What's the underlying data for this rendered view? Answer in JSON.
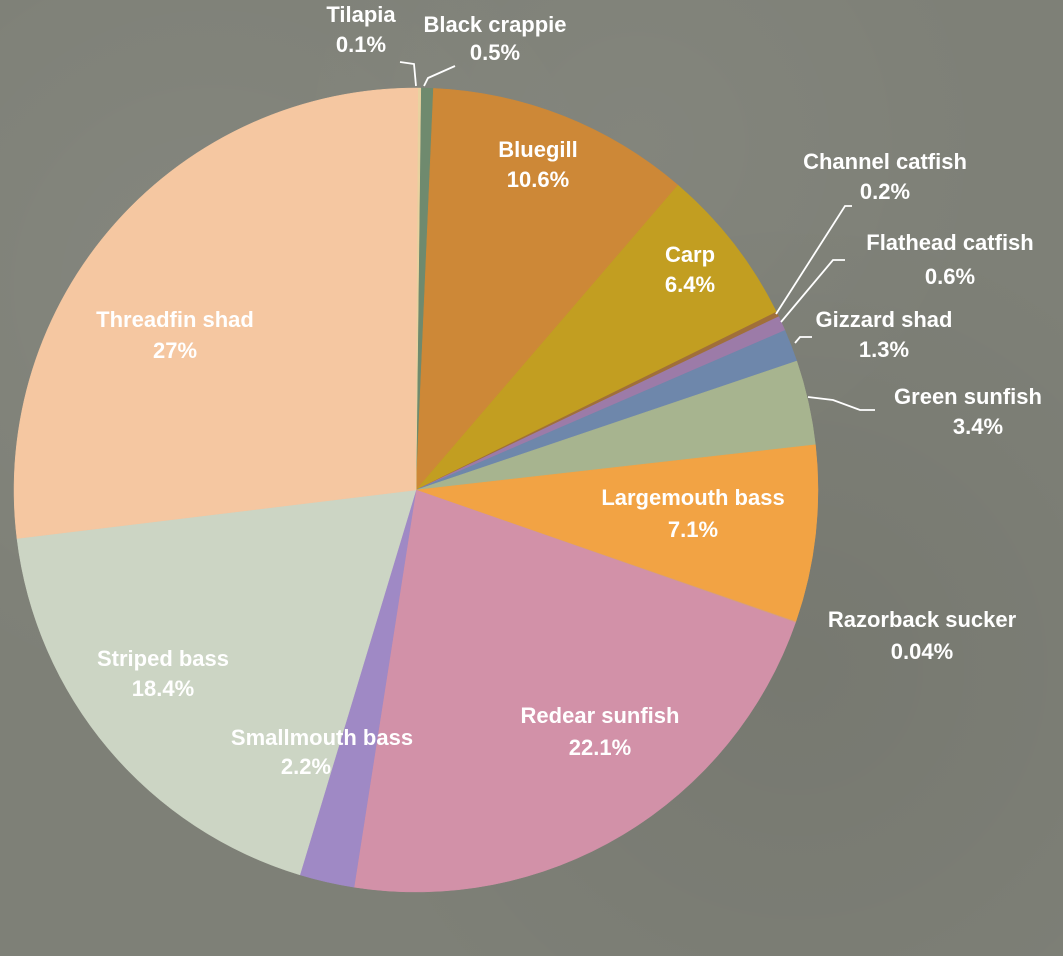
{
  "chart_data": {
    "type": "pie",
    "title": "",
    "slices": [
      {
        "name": "Black crappie",
        "value": 0.5,
        "label": "0.5%",
        "color": "#6f8a6e"
      },
      {
        "name": "Bluegill",
        "value": 10.6,
        "label": "10.6%",
        "color": "#cd8837"
      },
      {
        "name": "Carp",
        "value": 6.4,
        "label": "6.4%",
        "color": "#c29e21"
      },
      {
        "name": "Channel catfish",
        "value": 0.2,
        "label": "0.2%",
        "color": "#a06f3a"
      },
      {
        "name": "Flathead catfish",
        "value": 0.6,
        "label": "0.6%",
        "color": "#9c7ba8"
      },
      {
        "name": "Gizzard shad",
        "value": 1.3,
        "label": "1.3%",
        "color": "#6e87ab"
      },
      {
        "name": "Green sunfish",
        "value": 3.4,
        "label": "3.4%",
        "color": "#a7b48f"
      },
      {
        "name": "Largemouth bass",
        "value": 7.1,
        "label": "7.1%",
        "color": "#f2a344"
      },
      {
        "name": "Razorback sucker",
        "value": 0.04,
        "label": "0.04%",
        "color": "#d9a07a"
      },
      {
        "name": "Redear sunfish",
        "value": 22.1,
        "label": "22.1%",
        "color": "#d291a8"
      },
      {
        "name": "Smallmouth bass",
        "value": 2.2,
        "label": "2.2%",
        "color": "#9f89c5"
      },
      {
        "name": "Striped bass",
        "value": 18.4,
        "label": "18.4%",
        "color": "#ccd5c4"
      },
      {
        "name": "Threadfin shad",
        "value": 27,
        "label": "27%",
        "color": "#f5c7a1"
      },
      {
        "name": "Tilapia",
        "value": 0.1,
        "label": "0.1%",
        "color": "#e9d2a0"
      }
    ],
    "label_color_inside": "#ffffff",
    "label_color_outside": "#ffffff"
  }
}
